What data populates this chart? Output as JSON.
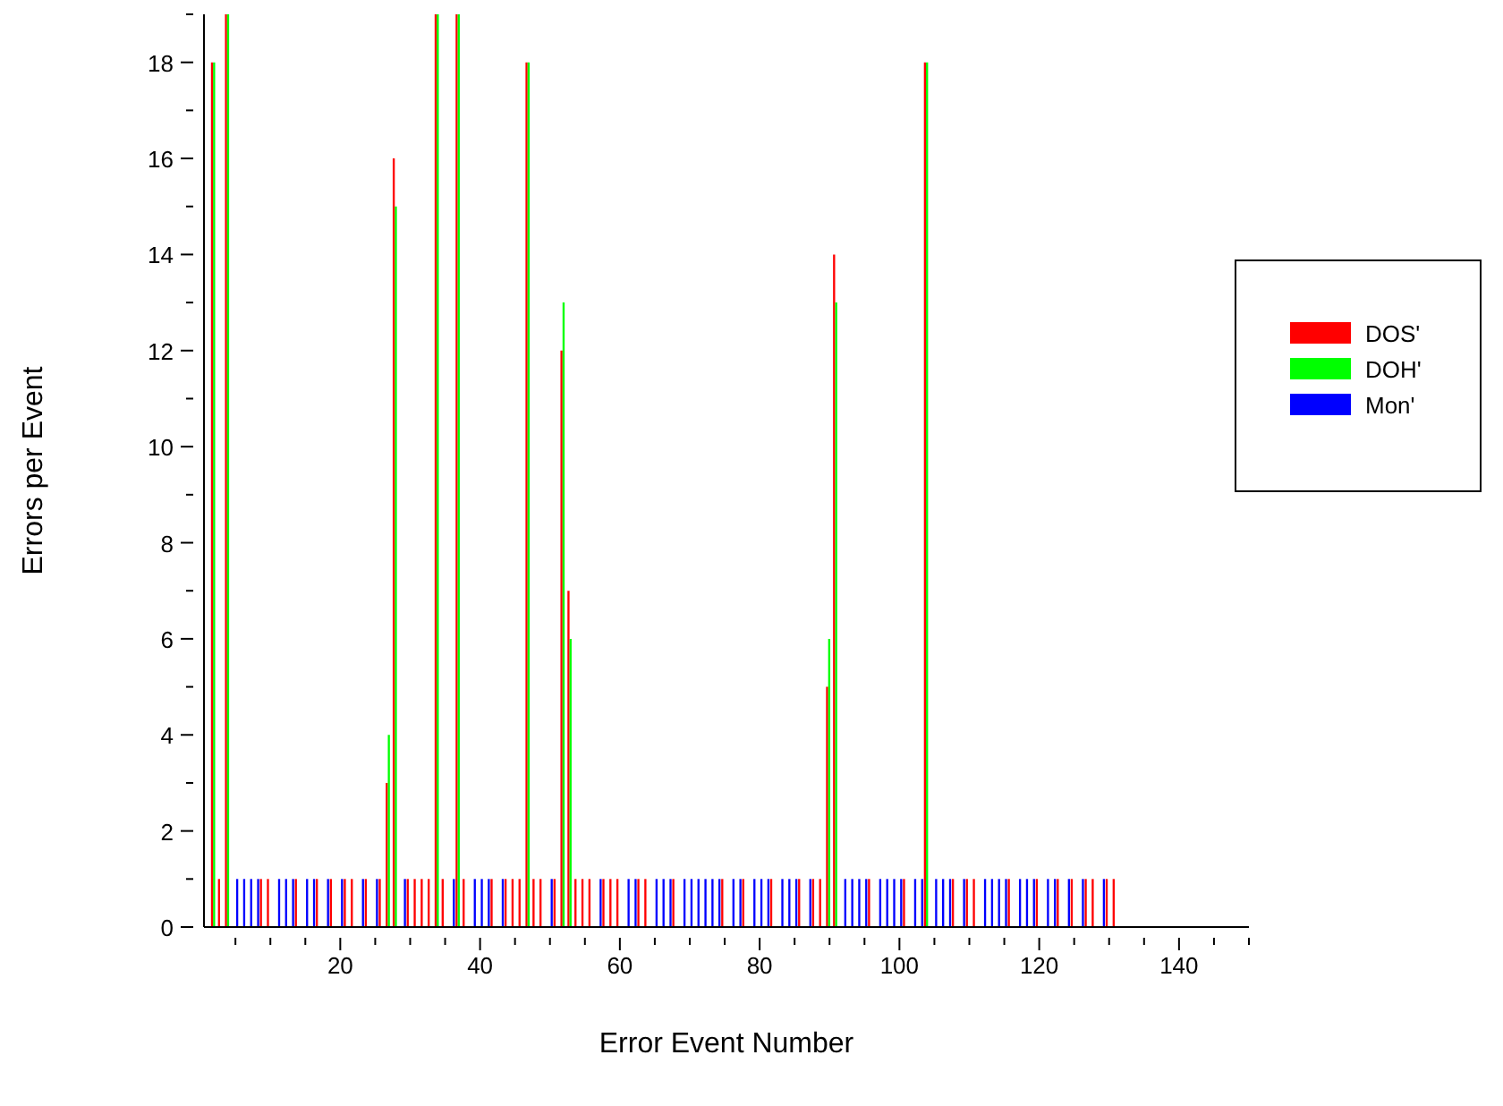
{
  "chart_data": {
    "type": "bar",
    "xlabel": "Error Event Number",
    "ylabel": "Errors per Event",
    "x": [
      1,
      2,
      3,
      4,
      5,
      6,
      7,
      8,
      9,
      10,
      11,
      12,
      13,
      14,
      15,
      16,
      17,
      18,
      19,
      20,
      21,
      22,
      23,
      24,
      25,
      26,
      27,
      28,
      29,
      30,
      31,
      32,
      33,
      34,
      35,
      36,
      37,
      38,
      39,
      40,
      41,
      42,
      43,
      44,
      45,
      46,
      47,
      48,
      49,
      50,
      51,
      52,
      53,
      54,
      55,
      56,
      57,
      58,
      59,
      60,
      61,
      62,
      63,
      64,
      65,
      66,
      67,
      68,
      69,
      70,
      71,
      72,
      73,
      74,
      75,
      76,
      77,
      78,
      79,
      80,
      81,
      82,
      83,
      84,
      85,
      86,
      87,
      88,
      89,
      90,
      91,
      92,
      93,
      94,
      95,
      96,
      97,
      98,
      99,
      100,
      101,
      102,
      103,
      104,
      105,
      106,
      107,
      108,
      109,
      110,
      111,
      112,
      113,
      114,
      115,
      116,
      117,
      118,
      119,
      120,
      121,
      122,
      123,
      124,
      125,
      126,
      127,
      128,
      129,
      130,
      131
    ],
    "series": [
      {
        "name": "DOS'",
        "color": "#ff0000",
        "values": [
          0,
          18,
          1,
          19,
          0,
          0,
          0,
          0,
          1,
          1,
          0,
          0,
          0,
          1,
          0,
          0,
          1,
          0,
          1,
          0,
          1,
          1,
          0,
          1,
          0,
          1,
          3,
          16,
          0,
          1,
          1,
          1,
          1,
          19,
          1,
          0,
          19,
          1,
          0,
          0,
          0,
          1,
          0,
          1,
          1,
          1,
          18,
          1,
          1,
          0,
          1,
          12,
          7,
          1,
          1,
          1,
          0,
          1,
          1,
          1,
          0,
          0,
          1,
          1,
          0,
          0,
          0,
          1,
          0,
          0,
          0,
          0,
          0,
          0,
          1,
          0,
          0,
          1,
          0,
          0,
          0,
          1,
          0,
          0,
          0,
          1,
          0,
          1,
          1,
          5,
          14,
          0,
          0,
          0,
          0,
          1,
          0,
          0,
          0,
          0,
          1,
          0,
          0,
          18,
          0,
          0,
          0,
          1,
          0,
          1,
          1,
          0,
          0,
          0,
          0,
          1,
          0,
          0,
          0,
          1,
          0,
          0,
          1,
          0,
          1,
          0,
          1,
          1,
          0,
          1,
          1
        ]
      },
      {
        "name": "DOH'",
        "color": "#00ff00",
        "values": [
          0,
          18,
          0,
          19,
          0,
          0,
          0,
          0,
          0,
          0,
          0,
          0,
          0,
          0,
          0,
          0,
          0,
          0,
          0,
          0,
          0,
          0,
          0,
          0,
          0,
          0,
          4,
          15,
          0,
          0,
          0,
          0,
          0,
          19,
          0,
          0,
          19,
          0,
          0,
          0,
          0,
          0,
          0,
          0,
          0,
          0,
          18,
          0,
          0,
          0,
          0,
          13,
          6,
          0,
          0,
          0,
          0,
          0,
          0,
          0,
          0,
          0,
          0,
          0,
          0,
          0,
          0,
          0,
          0,
          0,
          0,
          0,
          0,
          0,
          0,
          0,
          0,
          0,
          0,
          0,
          0,
          0,
          0,
          0,
          0,
          0,
          0,
          0,
          0,
          6,
          13,
          0,
          0,
          0,
          0,
          0,
          0,
          0,
          0,
          0,
          0,
          0,
          0,
          18,
          0,
          0,
          0,
          0,
          0,
          0,
          0,
          0,
          0,
          0,
          0,
          0,
          0,
          0,
          0,
          0,
          0,
          0,
          0,
          0,
          0,
          0,
          0,
          0,
          0,
          0,
          0
        ]
      },
      {
        "name": "Mon'",
        "color": "#0000ff",
        "values": [
          0,
          0,
          0,
          0,
          1,
          1,
          1,
          1,
          0,
          0,
          1,
          1,
          1,
          0,
          1,
          1,
          0,
          1,
          0,
          1,
          0,
          0,
          1,
          0,
          1,
          0,
          0,
          0,
          1,
          0,
          0,
          0,
          0,
          0,
          0,
          1,
          0,
          0,
          1,
          1,
          1,
          0,
          1,
          0,
          0,
          0,
          0,
          0,
          0,
          1,
          0,
          0,
          0,
          0,
          0,
          0,
          1,
          0,
          0,
          0,
          1,
          1,
          0,
          0,
          1,
          1,
          1,
          0,
          1,
          1,
          1,
          1,
          1,
          1,
          0,
          1,
          1,
          0,
          1,
          1,
          1,
          0,
          1,
          1,
          1,
          0,
          1,
          0,
          0,
          0,
          0,
          1,
          1,
          1,
          1,
          0,
          1,
          1,
          1,
          1,
          0,
          1,
          1,
          0,
          1,
          1,
          1,
          0,
          1,
          0,
          0,
          1,
          1,
          1,
          1,
          0,
          1,
          1,
          1,
          0,
          1,
          1,
          0,
          1,
          0,
          1,
          0,
          0,
          1,
          0,
          0
        ]
      }
    ],
    "xlim": [
      0.5,
      150
    ],
    "xticks": [
      {
        "value": 5,
        "label": null
      },
      {
        "value": 10,
        "label": null
      },
      {
        "value": 15,
        "label": null
      },
      20,
      {
        "value": 25,
        "label": null
      },
      {
        "value": 30,
        "label": null
      },
      {
        "value": 35,
        "label": null
      },
      40,
      {
        "value": 45,
        "label": null
      },
      {
        "value": 50,
        "label": null
      },
      {
        "value": 55,
        "label": null
      },
      60,
      {
        "value": 65,
        "label": null
      },
      {
        "value": 70,
        "label": null
      },
      {
        "value": 75,
        "label": null
      },
      80,
      {
        "value": 85,
        "label": null
      },
      {
        "value": 90,
        "label": null
      },
      {
        "value": 95,
        "label": null
      },
      100,
      {
        "value": 105,
        "label": null
      },
      {
        "value": 110,
        "label": null
      },
      {
        "value": 115,
        "label": null
      },
      120,
      {
        "value": 125,
        "label": null
      },
      {
        "value": 130,
        "label": null
      },
      {
        "value": 135,
        "label": null
      },
      140,
      {
        "value": 145,
        "label": null
      },
      {
        "value": 150,
        "label": null
      }
    ],
    "ylim": [
      0,
      19
    ],
    "yticks": [
      0,
      {
        "value": 1,
        "label": null
      },
      2,
      {
        "value": 3,
        "label": null
      },
      4,
      {
        "value": 5,
        "label": null
      },
      6,
      {
        "value": 7,
        "label": null
      },
      8,
      {
        "value": 9,
        "label": null
      },
      10,
      {
        "value": 11,
        "label": null
      },
      12,
      {
        "value": 13,
        "label": null
      },
      14,
      {
        "value": 15,
        "label": null
      },
      16,
      {
        "value": 17,
        "label": null
      },
      18,
      {
        "value": 19,
        "label": null
      }
    ],
    "legend": "top right",
    "grid": false
  }
}
